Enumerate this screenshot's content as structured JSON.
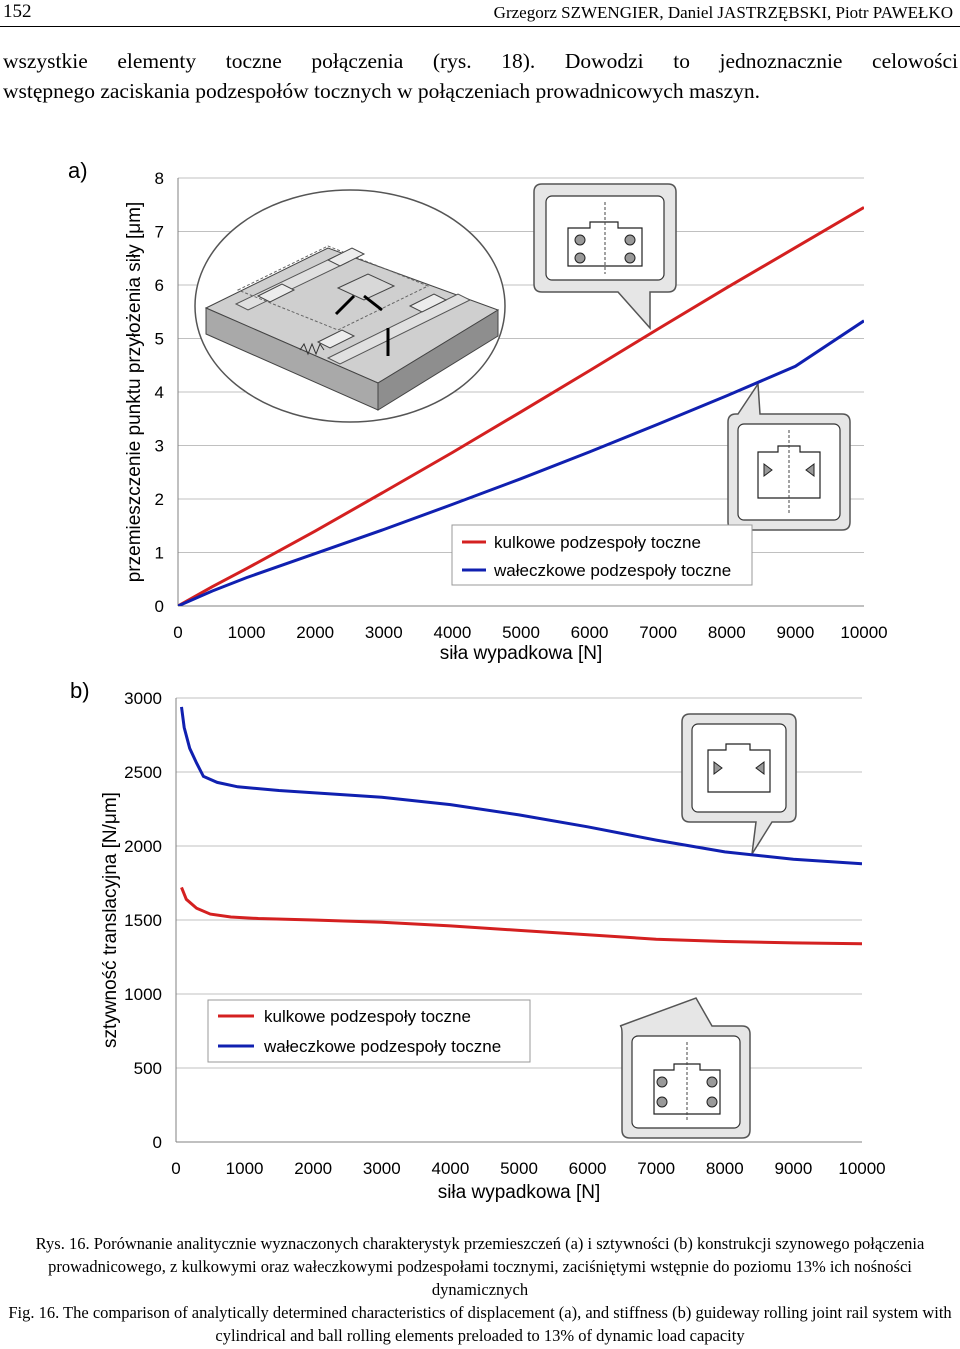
{
  "header": {
    "page_number": "152",
    "authors": "Grzegorz SZWENGIER, Daniel JASTRZĘBSKI, Piotr PAWEŁKO"
  },
  "paragraph": {
    "line1": "wszystkie elementy toczne połączenia (rys. 18). Dowodzi to jednoznacznie celowości",
    "line2": "wstępnego zaciskania podzespołów tocznych w połączeniach prowadnicowych maszyn."
  },
  "colors": {
    "ball": "#d42020",
    "roller": "#1020b0",
    "grid": "#c0c0c0",
    "inset_bg": "#e6e6e6"
  },
  "chart_data": [
    {
      "type": "line",
      "panel_label": "a)",
      "xlabel": "siła wypadkowa [N]",
      "ylabel": "przemieszczenie punktu przyłożenia siły [μm]",
      "xlim": [
        0,
        10000
      ],
      "ylim": [
        0,
        8
      ],
      "x_ticks": [
        "0",
        "1000",
        "2000",
        "3000",
        "4000",
        "5000",
        "6000",
        "7000",
        "8000",
        "9000",
        "10000"
      ],
      "y_ticks": [
        "0",
        "1",
        "2",
        "3",
        "4",
        "5",
        "6",
        "7",
        "8"
      ],
      "grid": "horizontal",
      "legend": "lower-right",
      "series": [
        {
          "name": "kulkowe podzespoły toczne",
          "color": "#d42020",
          "x": [
            0,
            500,
            1000,
            2000,
            3000,
            4000,
            5000,
            6000,
            7000,
            8000,
            9000,
            10000
          ],
          "y": [
            0,
            0.36,
            0.7,
            1.4,
            2.13,
            2.87,
            3.63,
            4.4,
            5.18,
            5.95,
            6.7,
            7.45
          ]
        },
        {
          "name": "wałeczkowe podzespoły toczne",
          "color": "#1020b0",
          "x": [
            0,
            500,
            1000,
            2000,
            3000,
            4000,
            5000,
            6000,
            7000,
            8000,
            9000,
            10000
          ],
          "y": [
            0,
            0.28,
            0.53,
            0.98,
            1.43,
            1.9,
            2.38,
            2.88,
            3.4,
            3.93,
            4.48,
            5.33
          ]
        }
      ]
    },
    {
      "type": "line",
      "panel_label": "b)",
      "xlabel": "siła wypadkowa [N]",
      "ylabel": "sztywność translacyjna  [N/μm]",
      "xlim": [
        0,
        10000
      ],
      "ylim": [
        0,
        3000
      ],
      "x_ticks": [
        "0",
        "1000",
        "2000",
        "3000",
        "4000",
        "5000",
        "6000",
        "7000",
        "8000",
        "9000",
        "10000"
      ],
      "y_ticks": [
        "0",
        "500",
        "1000",
        "1500",
        "2000",
        "2500",
        "3000"
      ],
      "grid": "horizontal",
      "legend": "lower-left",
      "series": [
        {
          "name": "kulkowe podzespoły toczne",
          "color": "#d42020",
          "x": [
            80,
            150,
            300,
            500,
            800,
            1200,
            2000,
            3000,
            4000,
            5000,
            6000,
            7000,
            8000,
            9000,
            10000
          ],
          "y": [
            1720,
            1640,
            1580,
            1540,
            1520,
            1510,
            1500,
            1485,
            1460,
            1430,
            1400,
            1370,
            1355,
            1345,
            1340
          ]
        },
        {
          "name": "wałeczkowe podzespoły toczne",
          "color": "#1020b0",
          "x": [
            80,
            120,
            200,
            300,
            400,
            600,
            900,
            1500,
            2000,
            3000,
            4000,
            5000,
            6000,
            7000,
            8000,
            9000,
            10000
          ],
          "y": [
            2940,
            2800,
            2660,
            2560,
            2470,
            2430,
            2400,
            2375,
            2360,
            2330,
            2280,
            2210,
            2130,
            2040,
            1960,
            1910,
            1880
          ]
        }
      ]
    }
  ],
  "caption_pl": "Rys. 16. Porównanie analitycznie wyznaczonych charakterystyk przemieszczeń (a) i sztywności (b) konstrukcji szynowego połączenia prowadnicowego, z kulkowymi oraz wałeczkowymi podzespołami tocznymi, zaciśniętymi wstępnie do poziomu 13% ich nośności dynamicznych",
  "caption_en": "Fig. 16. The comparison of analytically determined characteristics of displacement (a), and stiffness (b) guideway rolling joint rail system with cylindrical and ball rolling elements preloaded to 13% of dynamic load capacity"
}
